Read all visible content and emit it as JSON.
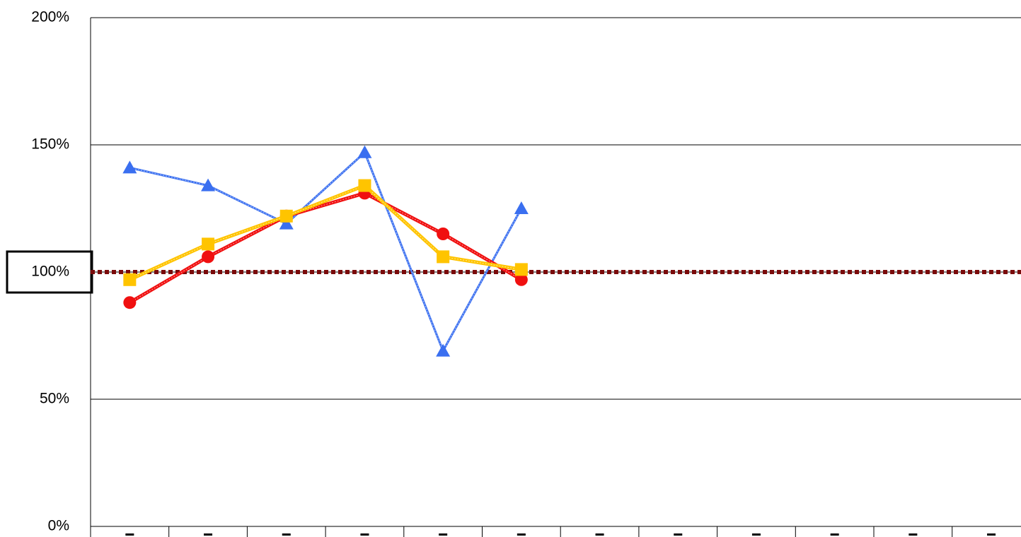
{
  "chart_data": {
    "type": "line",
    "categories": [
      null,
      null,
      null,
      null,
      null,
      null,
      null,
      null,
      null,
      null,
      null,
      null
    ],
    "series": [
      {
        "color": "#3a6ff0",
        "marker": "triangle",
        "values": [
          141,
          134,
          119,
          147,
          69,
          125,
          null,
          null,
          null,
          null,
          null,
          null
        ]
      },
      {
        "color": "#f01010",
        "marker": "circle",
        "values": [
          88,
          106,
          122,
          131,
          115,
          97,
          null,
          null,
          null,
          null,
          null,
          null
        ]
      },
      {
        "color": "#ffc400",
        "marker": "square",
        "values": [
          97,
          111,
          122,
          134,
          106,
          101,
          null,
          null,
          null,
          null,
          null,
          null
        ]
      }
    ],
    "reference_line": {
      "value": 100,
      "color": "#7a0a0a"
    },
    "boxed_tick": 100,
    "ylim": [
      0,
      200
    ],
    "yticks": [
      {
        "value": 0,
        "label": "0%"
      },
      {
        "value": 50,
        "label": "50%"
      },
      {
        "value": 100,
        "label": "100%"
      },
      {
        "value": 150,
        "label": "150%"
      },
      {
        "value": 200,
        "label": "200%"
      }
    ],
    "grid": true
  }
}
